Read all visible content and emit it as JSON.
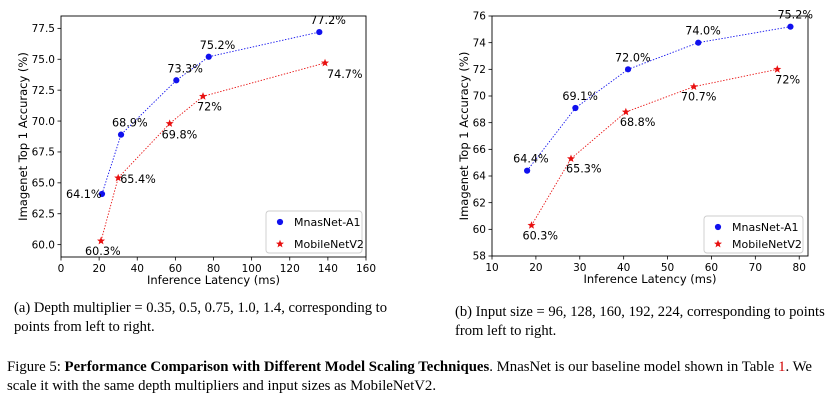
{
  "chart_data": [
    {
      "type": "scatter",
      "panel": "a",
      "xlabel": "Inference Latency (ms)",
      "ylabel": "Imagenet Top 1 Accuracy (%)",
      "xlim": [
        0,
        160
      ],
      "ylim": [
        59,
        78.5
      ],
      "xticks": [
        "0",
        "20",
        "40",
        "60",
        "80",
        "100",
        "120",
        "140",
        "160"
      ],
      "yticks": [
        "60.0",
        "62.5",
        "65.0",
        "67.5",
        "70.0",
        "72.5",
        "75.0",
        "77.5"
      ],
      "legend": "lower-right",
      "grid": false,
      "series": [
        {
          "name": "MnasNet-A1",
          "color": "#1010ee",
          "marker": "circle",
          "x": [
            21.5,
            31.5,
            60.5,
            77.5,
            135.5
          ],
          "y": [
            64.1,
            68.9,
            73.3,
            75.2,
            77.2
          ],
          "labels": [
            "64.1%",
            "68.9%",
            "73.3%",
            "75.2%",
            "77.2%"
          ]
        },
        {
          "name": "MobileNetV2",
          "color": "#e81010",
          "marker": "star",
          "x": [
            21,
            30,
            57,
            74.5,
            138.5
          ],
          "y": [
            60.3,
            65.4,
            69.8,
            72.0,
            74.7
          ],
          "labels": [
            "60.3%",
            "65.4%",
            "69.8%",
            "72%",
            "74.7%"
          ]
        }
      ]
    },
    {
      "type": "scatter",
      "panel": "b",
      "xlabel": "Inference Latency (ms)",
      "ylabel": "Imagenet Top 1 Accuracy (%)",
      "xlim": [
        10,
        82
      ],
      "ylim": [
        58,
        76
      ],
      "xticks": [
        "10",
        "20",
        "30",
        "40",
        "50",
        "60",
        "70",
        "80"
      ],
      "yticks": [
        "58",
        "60",
        "62",
        "64",
        "66",
        "68",
        "70",
        "72",
        "74",
        "76"
      ],
      "legend": "lower-right",
      "grid": false,
      "series": [
        {
          "name": "MnasNet-A1",
          "color": "#1010ee",
          "marker": "circle",
          "x": [
            18,
            29,
            41,
            57,
            78
          ],
          "y": [
            64.4,
            69.1,
            72.0,
            74.0,
            75.2
          ],
          "labels": [
            "64.4%",
            "69.1%",
            "72.0%",
            "74.0%",
            "75.2%"
          ]
        },
        {
          "name": "MobileNetV2",
          "color": "#e81010",
          "marker": "star",
          "x": [
            19,
            28,
            40.5,
            56,
            75
          ],
          "y": [
            60.3,
            65.3,
            68.8,
            70.7,
            72.0
          ],
          "labels": [
            "60.3%",
            "65.3%",
            "68.8%",
            "70.7%",
            "72%"
          ]
        }
      ]
    }
  ],
  "captions": {
    "sub_a": "(a) Depth multiplier = 0.35, 0.5, 0.75, 1.0, 1.4, corresponding to points from left to right.",
    "sub_b": "(b) Input size = 96, 128, 160, 192, 224, corresponding to points from left to right.",
    "fig_prefix": "Figure 5: ",
    "fig_bold": "Performance Comparison with Different Model Scaling Techniques",
    "fig_rest1": ". MnasNet is our baseline model shown in Table ",
    "fig_ref": "1",
    "fig_rest2": ". We scale it with the same depth multipliers and input sizes as MobileNetV2."
  }
}
